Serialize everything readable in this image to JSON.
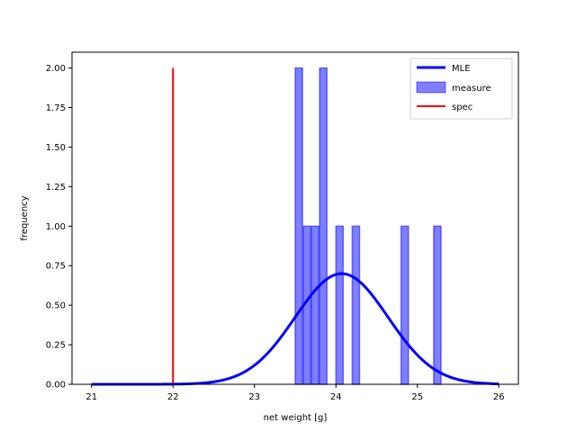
{
  "chart_data": {
    "type": "bar",
    "xlabel": "net weight [g]",
    "ylabel": "frequency",
    "xlim": [
      20.76,
      26.24
    ],
    "ylim": [
      0,
      2.1
    ],
    "xticks": [
      21,
      22,
      23,
      24,
      25,
      26
    ],
    "xtick_labels": [
      "21",
      "22",
      "23",
      "24",
      "25",
      "26"
    ],
    "yticks": [
      0,
      0.25,
      0.5,
      0.75,
      1.0,
      1.25,
      1.5,
      1.75,
      2.0
    ],
    "ytick_labels": [
      "0.00",
      "0.25",
      "0.50",
      "0.75",
      "1.00",
      "1.25",
      "1.50",
      "1.75",
      "2.00"
    ],
    "legend_position": "top-right",
    "grid": false,
    "series": [
      {
        "name": "MLE",
        "kind": "line",
        "color": "#0000ff",
        "curve": "normal-pdf",
        "mean": 24.07,
        "sd": 0.57,
        "x_range": [
          21,
          26
        ]
      },
      {
        "name": "measure",
        "kind": "histogram",
        "color": "#0000ff",
        "alpha": 0.5,
        "bins": [
          {
            "start": 23.5,
            "end": 23.59,
            "value": 2
          },
          {
            "start": 23.6,
            "end": 23.69,
            "value": 1
          },
          {
            "start": 23.7,
            "end": 23.79,
            "value": 1
          },
          {
            "start": 23.8,
            "end": 23.89,
            "value": 2
          },
          {
            "start": 24.0,
            "end": 24.09,
            "value": 1
          },
          {
            "start": 24.2,
            "end": 24.29,
            "value": 1
          },
          {
            "start": 24.8,
            "end": 24.89,
            "value": 1
          },
          {
            "start": 25.2,
            "end": 25.29,
            "value": 1
          }
        ]
      },
      {
        "name": "spec",
        "kind": "vline",
        "color": "#ff0000",
        "x": 22,
        "y_range": [
          0,
          2.0
        ]
      }
    ]
  }
}
